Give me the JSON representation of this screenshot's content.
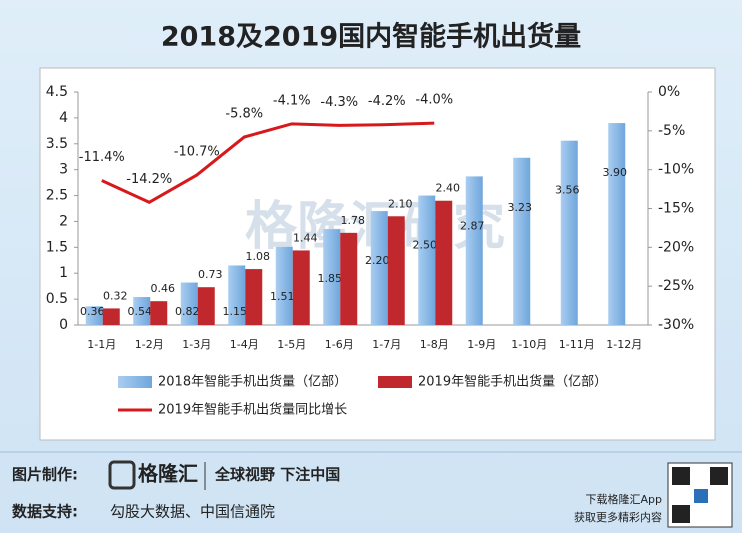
{
  "chart_data": {
    "type": "bar",
    "title": "2018及2019国内智能手机出货量",
    "categories": [
      "1-1月",
      "1-2月",
      "1-3月",
      "1-4月",
      "1-5月",
      "1-6月",
      "1-7月",
      "1-8月",
      "1-9月",
      "1-10月",
      "1-11月",
      "1-12月"
    ],
    "series": [
      {
        "name": "2018年智能手机出货量（亿部）",
        "type": "bar",
        "color": "#8fbbe8",
        "values": [
          0.36,
          0.54,
          0.82,
          1.15,
          1.51,
          1.85,
          2.2,
          2.5,
          2.87,
          3.23,
          3.56,
          3.9
        ],
        "value_labels": [
          "0.36",
          "0.54",
          "0.82",
          "1.15",
          "1.51",
          "1.85",
          "2.20",
          "2.50",
          "2.87",
          "3.23",
          "3.56",
          "3.90"
        ]
      },
      {
        "name": "2019年智能手机出货量（亿部）",
        "type": "bar",
        "color": "#c0282d",
        "values": [
          0.32,
          0.46,
          0.73,
          1.08,
          1.44,
          1.78,
          2.1,
          2.4,
          null,
          null,
          null,
          null
        ],
        "value_labels": [
          "0.32",
          "0.46",
          "0.73",
          "1.08",
          "1.44",
          "1.78",
          "2.10",
          "2.40",
          null,
          null,
          null,
          null
        ]
      },
      {
        "name": "2019年智能手机出货量同比增长",
        "type": "line",
        "axis": "y2",
        "color": "#d7191c",
        "values": [
          -11.4,
          -14.2,
          -10.7,
          -5.8,
          -4.1,
          -4.3,
          -4.2,
          -4.0,
          null,
          null,
          null,
          null
        ],
        "value_labels": [
          "-11.4%",
          "-14.2%",
          "-10.7%",
          "-5.8%",
          "-4.1%",
          "-4.3%",
          "-4.2%",
          "-4.0%",
          null,
          null,
          null,
          null
        ]
      }
    ],
    "ylim": [
      0,
      4.5
    ],
    "yticks": [
      0,
      0.5,
      1,
      1.5,
      2,
      2.5,
      3,
      3.5,
      4,
      4.5
    ],
    "y2lim": [
      -30,
      0
    ],
    "y2ticks": [
      {
        "value": -30,
        "label": "-30%"
      },
      {
        "value": -25,
        "label": "-25%"
      },
      {
        "value": -20,
        "label": "-20%"
      },
      {
        "value": -15,
        "label": "-15%"
      },
      {
        "value": -10,
        "label": "-10%"
      },
      {
        "value": -5,
        "label": "-5%"
      },
      {
        "value": 0,
        "label": "0%"
      }
    ],
    "grid": false,
    "watermark": "格隆汇研究"
  },
  "footer": {
    "made_by_label": "图片制作:",
    "brand": "格隆汇",
    "slogan": "全球视野 下注中国",
    "source_label": "数据支持:",
    "source": "勾股大数据、中国信通院",
    "app_line1": "下载格隆汇App",
    "app_line2": "获取更多精彩内容"
  }
}
